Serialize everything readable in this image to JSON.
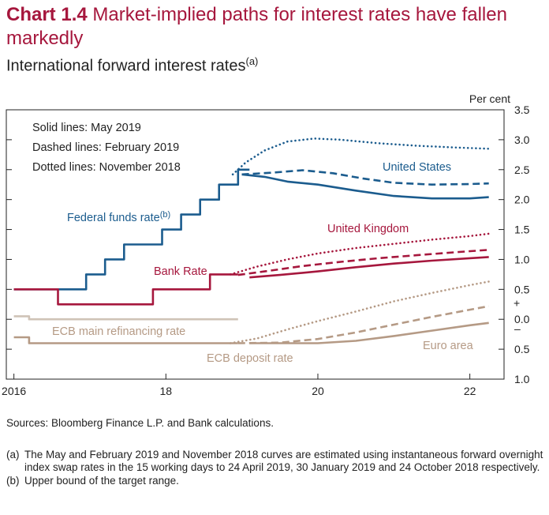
{
  "header": {
    "chart_number": "Chart 1.4",
    "title": "Market-implied paths for interest rates have fallen markedly",
    "subtitle": "International forward interest rates",
    "subtitle_note": "(a)"
  },
  "colors": {
    "us": "#1b5c8e",
    "uk": "#a6173d",
    "euro": "#b59a85",
    "ecb_main": "#cfc3b7",
    "axis": "#222222",
    "title": "#a6173d"
  },
  "chart_data": {
    "type": "line",
    "yunit": "Per cent",
    "x_ticks": [
      2016,
      2018,
      2020,
      2022
    ],
    "x_tick_labels": [
      "2016",
      "18",
      "20",
      "22"
    ],
    "xlim": [
      2015.9,
      2022.45
    ],
    "ylim": [
      -1.0,
      3.5
    ],
    "y_ticks": [
      -1.0,
      -0.5,
      0.0,
      0.5,
      1.0,
      1.5,
      2.0,
      2.5,
      3.0,
      3.5
    ],
    "y_tick_labels": [
      "1.0",
      "0.5",
      "0.0",
      "0.5",
      "1.0",
      "1.5",
      "2.0",
      "2.5",
      "3.0",
      "3.5"
    ],
    "y_sign_labels": {
      "plus": "+",
      "minus": "–"
    },
    "legend_notes": [
      "Solid lines: May 2019",
      "Dashed lines: February 2019",
      "Dotted lines: November 2018"
    ],
    "series": [
      {
        "name": "Federal funds rate",
        "label_note": "(b)",
        "color": "#1b5c8e",
        "style": "step",
        "points": [
          [
            2016.0,
            0.5
          ],
          [
            2016.95,
            0.5
          ],
          [
            2016.95,
            0.75
          ],
          [
            2017.2,
            0.75
          ],
          [
            2017.2,
            1.0
          ],
          [
            2017.45,
            1.0
          ],
          [
            2017.45,
            1.25
          ],
          [
            2017.95,
            1.25
          ],
          [
            2017.95,
            1.5
          ],
          [
            2018.2,
            1.5
          ],
          [
            2018.2,
            1.75
          ],
          [
            2018.45,
            1.75
          ],
          [
            2018.45,
            2.0
          ],
          [
            2018.7,
            2.0
          ],
          [
            2018.7,
            2.25
          ],
          [
            2018.95,
            2.25
          ],
          [
            2018.95,
            2.5
          ],
          [
            2019.1,
            2.5
          ]
        ]
      },
      {
        "name": "United States",
        "color": "#1b5c8e",
        "style": "solid",
        "points": [
          [
            2019.0,
            2.42
          ],
          [
            2019.3,
            2.38
          ],
          [
            2019.6,
            2.3
          ],
          [
            2020.0,
            2.25
          ],
          [
            2020.5,
            2.15
          ],
          [
            2021.0,
            2.06
          ],
          [
            2021.5,
            2.02
          ],
          [
            2022.0,
            2.02
          ],
          [
            2022.25,
            2.04
          ]
        ]
      },
      {
        "name": "United States",
        "color": "#1b5c8e",
        "style": "dashed",
        "points": [
          [
            2019.0,
            2.42
          ],
          [
            2019.4,
            2.45
          ],
          [
            2019.8,
            2.49
          ],
          [
            2020.2,
            2.44
          ],
          [
            2020.6,
            2.35
          ],
          [
            2021.0,
            2.28
          ],
          [
            2021.5,
            2.25
          ],
          [
            2022.0,
            2.26
          ],
          [
            2022.25,
            2.27
          ]
        ]
      },
      {
        "name": "United States",
        "color": "#1b5c8e",
        "style": "dotted",
        "points": [
          [
            2018.88,
            2.42
          ],
          [
            2019.05,
            2.62
          ],
          [
            2019.3,
            2.82
          ],
          [
            2019.6,
            2.97
          ],
          [
            2019.95,
            3.02
          ],
          [
            2020.3,
            3.0
          ],
          [
            2020.8,
            2.94
          ],
          [
            2021.3,
            2.9
          ],
          [
            2021.8,
            2.87
          ],
          [
            2022.25,
            2.85
          ]
        ]
      },
      {
        "name": "Bank Rate",
        "color": "#a6173d",
        "style": "step",
        "points": [
          [
            2016.0,
            0.5
          ],
          [
            2016.58,
            0.5
          ],
          [
            2016.58,
            0.25
          ],
          [
            2017.83,
            0.25
          ],
          [
            2017.83,
            0.5
          ],
          [
            2018.58,
            0.5
          ],
          [
            2018.58,
            0.75
          ],
          [
            2018.95,
            0.75
          ]
        ]
      },
      {
        "name": "United Kingdom",
        "color": "#a6173d",
        "style": "solid",
        "points": [
          [
            2019.1,
            0.7
          ],
          [
            2019.5,
            0.74
          ],
          [
            2020.0,
            0.8
          ],
          [
            2020.5,
            0.87
          ],
          [
            2021.0,
            0.93
          ],
          [
            2021.5,
            0.98
          ],
          [
            2022.0,
            1.02
          ],
          [
            2022.25,
            1.04
          ]
        ]
      },
      {
        "name": "United Kingdom",
        "color": "#a6173d",
        "style": "dashed",
        "points": [
          [
            2018.95,
            0.74
          ],
          [
            2019.3,
            0.8
          ],
          [
            2019.8,
            0.89
          ],
          [
            2020.3,
            0.96
          ],
          [
            2020.8,
            1.02
          ],
          [
            2021.3,
            1.07
          ],
          [
            2021.8,
            1.12
          ],
          [
            2022.25,
            1.16
          ]
        ]
      },
      {
        "name": "United Kingdom",
        "color": "#a6173d",
        "style": "dotted",
        "points": [
          [
            2018.85,
            0.75
          ],
          [
            2019.2,
            0.88
          ],
          [
            2019.6,
            1.0
          ],
          [
            2020.0,
            1.1
          ],
          [
            2020.5,
            1.19
          ],
          [
            2021.0,
            1.26
          ],
          [
            2021.5,
            1.33
          ],
          [
            2022.0,
            1.39
          ],
          [
            2022.25,
            1.43
          ]
        ]
      },
      {
        "name": "ECB main refinancing rate",
        "color": "#cfc3b7",
        "style": "step",
        "points": [
          [
            2016.0,
            0.05
          ],
          [
            2016.2,
            0.05
          ],
          [
            2016.2,
            0.0
          ],
          [
            2018.95,
            0.0
          ]
        ]
      },
      {
        "name": "ECB deposit rate",
        "color": "#b59a85",
        "style": "step",
        "points": [
          [
            2016.0,
            -0.3
          ],
          [
            2016.2,
            -0.3
          ],
          [
            2016.2,
            -0.4
          ],
          [
            2018.95,
            -0.4
          ]
        ]
      },
      {
        "name": "Euro area",
        "color": "#b59a85",
        "style": "solid",
        "points": [
          [
            2019.1,
            -0.4
          ],
          [
            2019.5,
            -0.4
          ],
          [
            2020.0,
            -0.4
          ],
          [
            2020.5,
            -0.36
          ],
          [
            2021.0,
            -0.28
          ],
          [
            2021.5,
            -0.19
          ],
          [
            2022.0,
            -0.1
          ],
          [
            2022.25,
            -0.06
          ]
        ]
      },
      {
        "name": "Euro area",
        "color": "#b59a85",
        "style": "dashed",
        "points": [
          [
            2018.95,
            -0.4
          ],
          [
            2019.5,
            -0.39
          ],
          [
            2020.0,
            -0.33
          ],
          [
            2020.5,
            -0.22
          ],
          [
            2021.0,
            -0.09
          ],
          [
            2021.5,
            0.04
          ],
          [
            2022.0,
            0.16
          ],
          [
            2022.25,
            0.22
          ]
        ]
      },
      {
        "name": "Euro area",
        "color": "#b59a85",
        "style": "dotted",
        "points": [
          [
            2018.85,
            -0.4
          ],
          [
            2019.2,
            -0.32
          ],
          [
            2019.6,
            -0.17
          ],
          [
            2020.0,
            -0.03
          ],
          [
            2020.5,
            0.13
          ],
          [
            2021.0,
            0.3
          ],
          [
            2021.5,
            0.44
          ],
          [
            2022.0,
            0.57
          ],
          [
            2022.25,
            0.63
          ]
        ]
      }
    ]
  },
  "series_labels": {
    "us": "United States",
    "uk": "United Kingdom",
    "euro": "Euro area",
    "fed": "Federal funds rate",
    "fed_note": "(b)",
    "bank": "Bank Rate",
    "ecb_main": "ECB main refinancing rate",
    "ecb_dep": "ECB deposit rate"
  },
  "footer": {
    "sources": "Sources: Bloomberg Finance L.P. and Bank calculations.",
    "notes": [
      {
        "marker": "(a)",
        "text": "The May and February 2019 and November 2018 curves are estimated using instantaneous forward overnight index swap rates in the 15 working days to 24 April 2019, 30 January 2019 and 24 October 2018 respectively."
      },
      {
        "marker": "(b)",
        "text": "Upper bound of the target range."
      }
    ]
  }
}
